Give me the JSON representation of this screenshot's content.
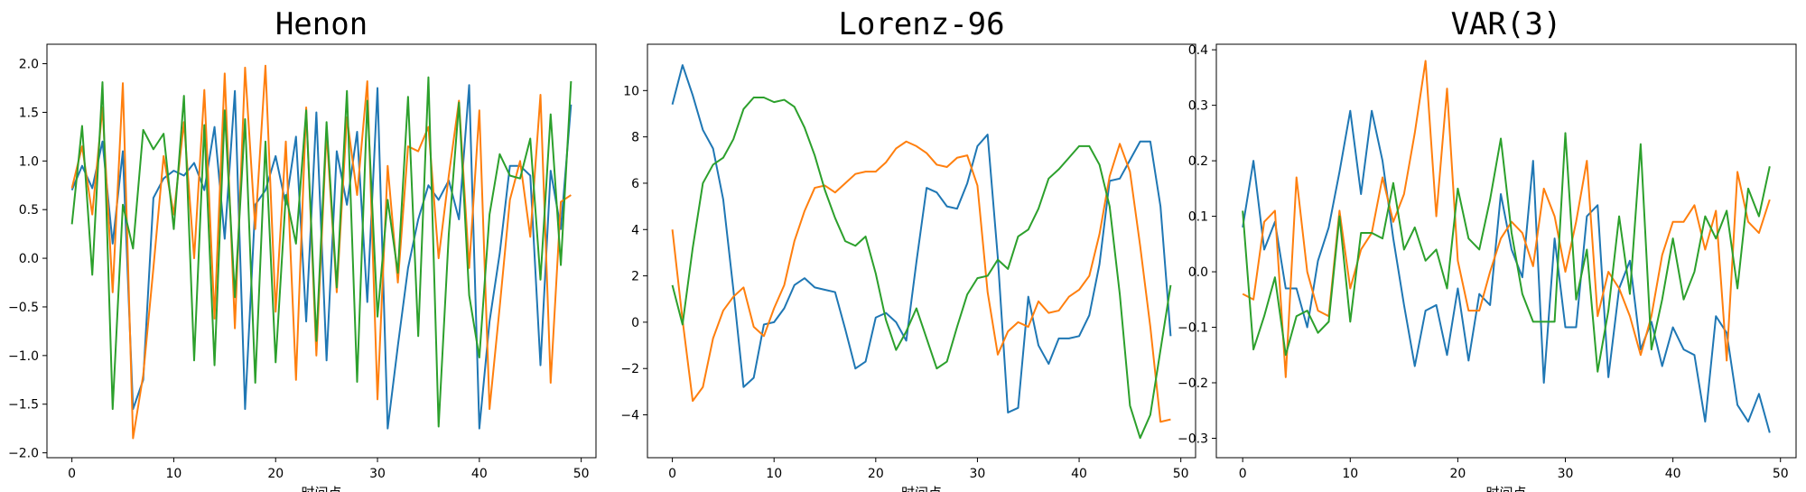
{
  "chart_data": [
    {
      "type": "line",
      "title": "Henon",
      "xlabel": "时间点",
      "ylabel": "",
      "xlim": [
        -2.45,
        51.45
      ],
      "ylim": [
        -2.05,
        2.2
      ],
      "xticks": [
        0,
        10,
        20,
        30,
        40,
        50
      ],
      "yticks": [
        -2.0,
        -1.5,
        -1.0,
        -0.5,
        0.0,
        0.5,
        1.0,
        1.5,
        2.0
      ],
      "ytick_labels": [
        "−2.0",
        "−1.5",
        "−1.0",
        "−0.5",
        "0.0",
        "0.5",
        "1.0",
        "1.5",
        "2.0"
      ],
      "x": [
        0,
        1,
        2,
        3,
        4,
        5,
        6,
        7,
        8,
        9,
        10,
        11,
        12,
        13,
        14,
        15,
        16,
        17,
        18,
        19,
        20,
        21,
        22,
        23,
        24,
        25,
        26,
        27,
        28,
        29,
        30,
        31,
        32,
        33,
        34,
        35,
        36,
        37,
        38,
        39,
        40,
        41,
        42,
        43,
        44,
        45,
        46,
        47,
        48,
        49
      ],
      "series": [
        {
          "color": "#1f77b4",
          "values": [
            0.7,
            0.95,
            0.72,
            1.2,
            0.15,
            1.1,
            -1.55,
            -1.25,
            0.62,
            0.82,
            0.9,
            0.85,
            0.98,
            0.7,
            1.35,
            0.2,
            1.72,
            -1.55,
            0.55,
            0.7,
            1.05,
            0.55,
            1.25,
            -0.65,
            1.5,
            -1.05,
            1.1,
            0.55,
            1.3,
            -0.45,
            1.75,
            -1.75,
            -0.9,
            -0.1,
            0.4,
            0.75,
            0.6,
            0.8,
            0.4,
            1.78,
            -1.75,
            -0.65,
            0.05,
            0.95,
            0.95,
            0.85,
            -1.1,
            0.9,
            0.3,
            1.58
          ]
        },
        {
          "color": "#ff7f0e",
          "values": [
            0.72,
            1.15,
            0.45,
            1.55,
            -0.35,
            1.8,
            -1.85,
            -1.2,
            -0.1,
            1.05,
            0.45,
            1.4,
            0.0,
            1.73,
            -0.62,
            1.9,
            -0.72,
            1.96,
            0.3,
            1.98,
            -0.55,
            1.2,
            -1.25,
            1.55,
            -1.0,
            1.3,
            -0.35,
            1.45,
            0.65,
            1.82,
            -1.45,
            0.95,
            -0.25,
            1.15,
            1.1,
            1.35,
            0.0,
            0.85,
            1.62,
            -0.1,
            1.52,
            -1.55,
            -0.5,
            0.6,
            1.0,
            0.22,
            1.68,
            -1.28,
            0.58,
            0.65
          ]
        },
        {
          "color": "#2ca02c",
          "values": [
            0.35,
            1.36,
            -0.17,
            1.81,
            -1.55,
            0.55,
            0.1,
            1.32,
            1.12,
            1.28,
            0.3,
            1.67,
            -1.05,
            1.37,
            -1.1,
            1.52,
            -0.4,
            1.43,
            -1.28,
            1.2,
            -1.07,
            0.65,
            0.15,
            1.52,
            -0.85,
            1.4,
            -0.3,
            1.72,
            -1.27,
            1.62,
            -0.6,
            0.6,
            -0.15,
            1.66,
            -0.8,
            1.86,
            -1.73,
            0.25,
            1.6,
            -0.38,
            -1.02,
            0.45,
            1.07,
            0.85,
            0.82,
            1.23,
            -0.22,
            1.48,
            -0.07,
            1.82
          ]
        }
      ]
    },
    {
      "type": "line",
      "title": "Lorenz-96",
      "xlabel": "时间点",
      "ylabel": "",
      "xlim": [
        -2.45,
        51.45
      ],
      "ylim": [
        -5.85,
        12.0
      ],
      "xticks": [
        0,
        10,
        20,
        30,
        40,
        50
      ],
      "yticks": [
        -4,
        -2,
        0,
        2,
        4,
        6,
        8,
        10
      ],
      "ytick_labels": [
        "−4",
        "−2",
        "0",
        "2",
        "4",
        "6",
        "8",
        "10"
      ],
      "x": [
        0,
        1,
        2,
        3,
        4,
        5,
        6,
        7,
        8,
        9,
        10,
        11,
        12,
        13,
        14,
        15,
        16,
        17,
        18,
        19,
        20,
        21,
        22,
        23,
        24,
        25,
        26,
        27,
        28,
        29,
        30,
        31,
        32,
        33,
        34,
        35,
        36,
        37,
        38,
        39,
        40,
        41,
        42,
        43,
        44,
        45,
        46,
        47,
        48,
        49
      ],
      "series": [
        {
          "color": "#1f77b4",
          "values": [
            9.4,
            11.1,
            9.8,
            8.3,
            7.5,
            5.3,
            1.4,
            -2.8,
            -2.4,
            -0.1,
            0.0,
            0.6,
            1.6,
            1.9,
            1.5,
            1.4,
            1.3,
            -0.3,
            -2.0,
            -1.7,
            0.2,
            0.4,
            0.0,
            -0.8,
            2.6,
            5.8,
            5.6,
            5.0,
            4.9,
            6.0,
            7.6,
            8.1,
            2.8,
            -3.9,
            -3.7,
            1.1,
            -1.0,
            -1.8,
            -0.7,
            -0.7,
            -0.6,
            0.3,
            2.5,
            6.1,
            6.2,
            7.0,
            7.8,
            7.8,
            5.0,
            -0.6
          ]
        },
        {
          "color": "#ff7f0e",
          "values": [
            4.0,
            0.1,
            -3.4,
            -2.8,
            -0.7,
            0.5,
            1.1,
            1.5,
            -0.2,
            -0.6,
            0.6,
            1.6,
            3.5,
            4.8,
            5.8,
            5.9,
            5.6,
            6.0,
            6.4,
            6.5,
            6.5,
            6.9,
            7.5,
            7.8,
            7.6,
            7.3,
            6.8,
            6.7,
            7.1,
            7.2,
            5.9,
            1.3,
            -1.4,
            -0.4,
            0.0,
            -0.2,
            0.9,
            0.4,
            0.5,
            1.1,
            1.4,
            2.0,
            3.8,
            6.3,
            7.7,
            6.5,
            3.3,
            -0.2,
            -4.3,
            -4.2
          ]
        },
        {
          "color": "#2ca02c",
          "values": [
            1.6,
            -0.1,
            3.2,
            6.0,
            6.8,
            7.1,
            7.9,
            9.2,
            9.7,
            9.7,
            9.5,
            9.6,
            9.3,
            8.4,
            7.2,
            5.7,
            4.5,
            3.5,
            3.3,
            3.7,
            2.1,
            0.1,
            -1.2,
            -0.4,
            0.6,
            -0.7,
            -2.0,
            -1.7,
            -0.2,
            1.2,
            1.9,
            2.0,
            2.7,
            2.3,
            3.7,
            4.0,
            4.9,
            6.2,
            6.6,
            7.1,
            7.6,
            7.6,
            6.8,
            5.0,
            1.2,
            -3.6,
            -5.0,
            -4.0,
            -1.2,
            1.6
          ]
        }
      ]
    },
    {
      "type": "line",
      "title": "VAR(3)",
      "xlabel": "时间点",
      "ylabel": "",
      "xlim": [
        -2.45,
        51.45
      ],
      "ylim": [
        -0.335,
        0.41
      ],
      "xticks": [
        0,
        10,
        20,
        30,
        40,
        50
      ],
      "yticks": [
        -0.3,
        -0.2,
        -0.1,
        0.0,
        0.1,
        0.2,
        0.3,
        0.4
      ],
      "ytick_labels": [
        "−0.3",
        "−0.2",
        "−0.1",
        "0.0",
        "0.1",
        "0.2",
        "0.3",
        "0.4"
      ],
      "x": [
        0,
        1,
        2,
        3,
        4,
        5,
        6,
        7,
        8,
        9,
        10,
        11,
        12,
        13,
        14,
        15,
        16,
        17,
        18,
        19,
        20,
        21,
        22,
        23,
        24,
        25,
        26,
        27,
        28,
        29,
        30,
        31,
        32,
        33,
        34,
        35,
        36,
        37,
        38,
        39,
        40,
        41,
        42,
        43,
        44,
        45,
        46,
        47,
        48,
        49
      ],
      "series": [
        {
          "color": "#1f77b4",
          "values": [
            0.08,
            0.2,
            0.04,
            0.09,
            -0.03,
            -0.03,
            -0.1,
            0.02,
            0.08,
            0.18,
            0.29,
            0.14,
            0.29,
            0.2,
            0.06,
            -0.06,
            -0.17,
            -0.07,
            -0.06,
            -0.15,
            -0.03,
            -0.16,
            -0.04,
            -0.06,
            0.14,
            0.04,
            -0.01,
            0.2,
            -0.2,
            0.06,
            -0.1,
            -0.1,
            0.1,
            0.12,
            -0.19,
            -0.03,
            0.02,
            -0.14,
            -0.09,
            -0.17,
            -0.1,
            -0.14,
            -0.15,
            -0.27,
            -0.08,
            -0.11,
            -0.24,
            -0.27,
            -0.22,
            -0.29
          ]
        },
        {
          "color": "#ff7f0e",
          "values": [
            -0.04,
            -0.05,
            0.09,
            0.11,
            -0.19,
            0.17,
            0.0,
            -0.07,
            -0.08,
            0.11,
            -0.03,
            0.04,
            0.07,
            0.17,
            0.09,
            0.14,
            0.25,
            0.38,
            0.1,
            0.33,
            0.02,
            -0.07,
            -0.07,
            0.0,
            0.06,
            0.09,
            0.07,
            0.01,
            0.15,
            0.1,
            0.0,
            0.09,
            0.2,
            -0.08,
            0.0,
            -0.03,
            -0.08,
            -0.15,
            -0.08,
            0.03,
            0.09,
            0.09,
            0.12,
            0.04,
            0.11,
            -0.16,
            0.18,
            0.09,
            0.07,
            0.13
          ]
        },
        {
          "color": "#2ca02c",
          "values": [
            0.11,
            -0.14,
            -0.08,
            -0.01,
            -0.15,
            -0.08,
            -0.07,
            -0.11,
            -0.09,
            0.1,
            -0.09,
            0.07,
            0.07,
            0.06,
            0.16,
            0.04,
            0.08,
            0.02,
            0.04,
            -0.03,
            0.15,
            0.06,
            0.04,
            0.13,
            0.24,
            0.07,
            -0.04,
            -0.09,
            -0.09,
            -0.09,
            0.25,
            -0.05,
            0.04,
            -0.18,
            -0.07,
            0.1,
            -0.04,
            0.23,
            -0.14,
            -0.05,
            0.06,
            -0.05,
            0.0,
            0.1,
            0.06,
            0.11,
            -0.03,
            0.15,
            0.1,
            0.19
          ]
        }
      ]
    }
  ]
}
